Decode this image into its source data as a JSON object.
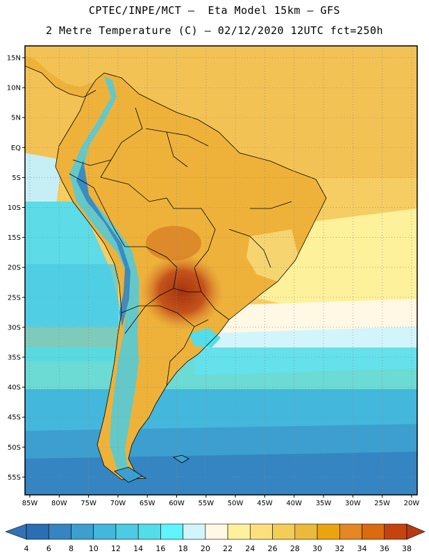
{
  "header": {
    "line1": "CPTEC/INPE/MCT –  Eta Model 15km – GFS",
    "line2": "2 Metre Temperature (C) – 02/12/2020 12UTC fct=250h"
  },
  "axes": {
    "lat_labels": [
      "15N",
      "10N",
      "5N",
      "EQ",
      "5S",
      "10S",
      "15S",
      "20S",
      "25S",
      "30S",
      "35S",
      "40S",
      "45S",
      "50S",
      "55S"
    ],
    "lon_labels": [
      "85W",
      "80W",
      "75W",
      "70W",
      "65W",
      "60W",
      "55W",
      "50W",
      "45W",
      "40W",
      "35W",
      "30W",
      "25W",
      "20W"
    ]
  },
  "legend": {
    "colors": [
      "#2a6eb3",
      "#3485c2",
      "#3c9fcf",
      "#44b7dc",
      "#4ccbe2",
      "#52dde8",
      "#5ff5ff",
      "#d2f5fb",
      "#fff8e4",
      "#fdf19b",
      "#fde07b",
      "#f4cd56",
      "#ecba3a",
      "#e9a40f",
      "#e38825",
      "#dc6a0e",
      "#c5430e"
    ],
    "edge_low": "#3171b7",
    "edge_high": "#b83a12",
    "labels": [
      "4",
      "6",
      "8",
      "10",
      "12",
      "14",
      "16",
      "18",
      "20",
      "22",
      "24",
      "26",
      "28",
      "30",
      "32",
      "34",
      "36",
      "38"
    ]
  }
}
